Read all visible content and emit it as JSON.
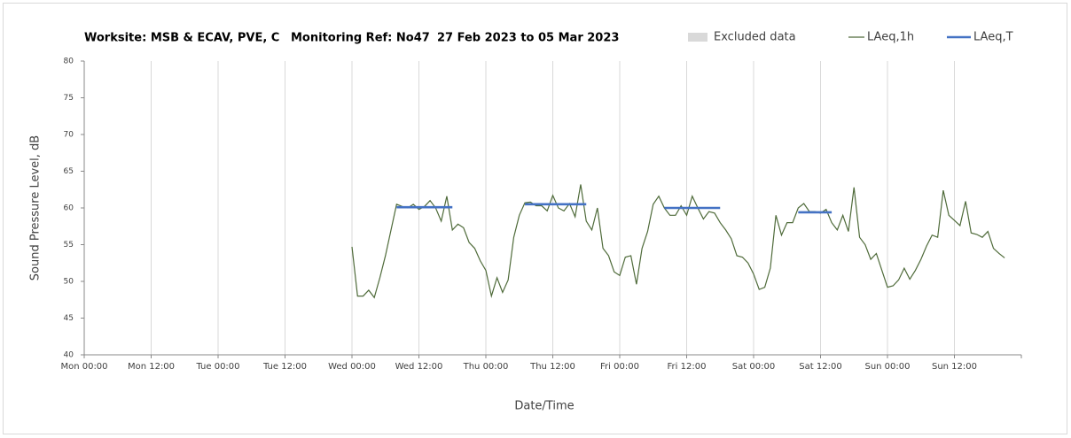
{
  "chart_data": {
    "type": "line",
    "title": [
      "Worksite: MSB & ECAV, PVE, C",
      "Monitoring Ref: No47",
      "27 Feb 2023 to 05 Mar 2023"
    ],
    "xlabel": "Date/Time",
    "ylabel": "Sound Pressure Level, dB",
    "legend": [
      {
        "name": "Excluded data",
        "color": "#d9d9d9"
      }
    ],
    "series": [
      {
        "name": "LAeq,1h",
        "color": "#4f6b3a",
        "x": [
          48,
          49,
          50,
          51,
          52,
          53,
          54,
          55,
          56,
          57,
          58,
          59,
          60,
          61,
          62,
          63,
          64,
          65,
          66,
          67,
          68,
          69,
          70,
          71,
          72,
          73,
          74,
          75,
          76,
          77,
          78,
          79,
          80,
          81,
          82,
          83,
          84,
          85,
          86,
          87,
          88,
          89,
          90,
          91,
          92,
          93,
          94,
          95,
          96,
          97,
          98,
          99,
          100,
          101,
          102,
          103,
          104,
          105,
          106,
          107,
          108,
          109,
          110,
          111,
          112,
          113,
          114,
          115,
          116,
          117,
          118,
          119,
          120,
          121,
          122,
          123,
          124,
          125,
          126,
          127,
          128,
          129,
          130,
          131,
          132,
          133,
          134,
          135,
          136,
          137,
          138,
          139,
          140,
          141,
          142,
          143,
          144,
          145,
          146,
          147,
          148,
          149,
          150,
          151,
          152,
          153,
          154,
          155,
          156,
          157,
          158,
          159,
          160,
          161,
          162,
          163,
          164,
          165
        ],
        "values": [
          54.7,
          48,
          48,
          48.8,
          47.8,
          50.5,
          53.5,
          57,
          60.5,
          60.2,
          60,
          60.5,
          59.8,
          60.2,
          61,
          60,
          58.2,
          61.6,
          57,
          57.8,
          57.3,
          55.3,
          54.5,
          52.8,
          51.5,
          48,
          50.5,
          48.5,
          50.2,
          56,
          59,
          60.7,
          60.8,
          60.3,
          60.3,
          59.6,
          61.7,
          60,
          59.6,
          60.6,
          58.8,
          63.2,
          58.2,
          57,
          60,
          54.5,
          53.5,
          51.3,
          50.8,
          53.3,
          53.5,
          49.6,
          54.5,
          56.8,
          60.5,
          61.6,
          60,
          59,
          59,
          60.3,
          59,
          61.6,
          60,
          58.5,
          59.5,
          59.3,
          58,
          57,
          55.8,
          53.5,
          53.3,
          52.5,
          51,
          48.9,
          49.2,
          51.8,
          59,
          56.3,
          58,
          58,
          60,
          60.6,
          59.5,
          59.5,
          59.3,
          59.8,
          58,
          57,
          59,
          56.8,
          62.8,
          56,
          55,
          53,
          53.8,
          51.5,
          49.2,
          49.4,
          50.2,
          51.8,
          50.3,
          51.5,
          53,
          54.8,
          56.3,
          56,
          62.4,
          59,
          58.3,
          57.6,
          60.9,
          56.6,
          56.4,
          56,
          56.8,
          54.5,
          53.8,
          53.2
        ]
      },
      {
        "name": "LAeq,T",
        "color": "#4472c4",
        "x": [
          56,
          66,
          67,
          79,
          90,
          91,
          104,
          114,
          115,
          128,
          134
        ],
        "values": [
          60.1,
          60.1,
          null,
          60.5,
          60.5,
          null,
          60,
          60,
          null,
          59.4,
          59.4
        ]
      }
    ],
    "xlim": [
      0,
      168
    ],
    "xticks": [
      {
        "value": 0,
        "label": "Mon 00:00"
      },
      {
        "value": 12,
        "label": "Mon 12:00"
      },
      {
        "value": 24,
        "label": "Tue 00:00"
      },
      {
        "value": 36,
        "label": "Tue 12:00"
      },
      {
        "value": 48,
        "label": "Wed 00:00"
      },
      {
        "value": 60,
        "label": "Wed 12:00"
      },
      {
        "value": 72,
        "label": "Thu 00:00"
      },
      {
        "value": 84,
        "label": "Thu 12:00"
      },
      {
        "value": 96,
        "label": "Fri 00:00"
      },
      {
        "value": 108,
        "label": "Fri 12:00"
      },
      {
        "value": 120,
        "label": "Sat 00:00"
      },
      {
        "value": 132,
        "label": "Sat 12:00"
      },
      {
        "value": 144,
        "label": "Sun 00:00"
      },
      {
        "value": 156,
        "label": "Sun 12:00"
      }
    ],
    "ylim": [
      40,
      80
    ],
    "yticks": [
      40,
      45,
      50,
      55,
      60,
      65,
      70,
      75,
      80
    ],
    "grid": true
  }
}
